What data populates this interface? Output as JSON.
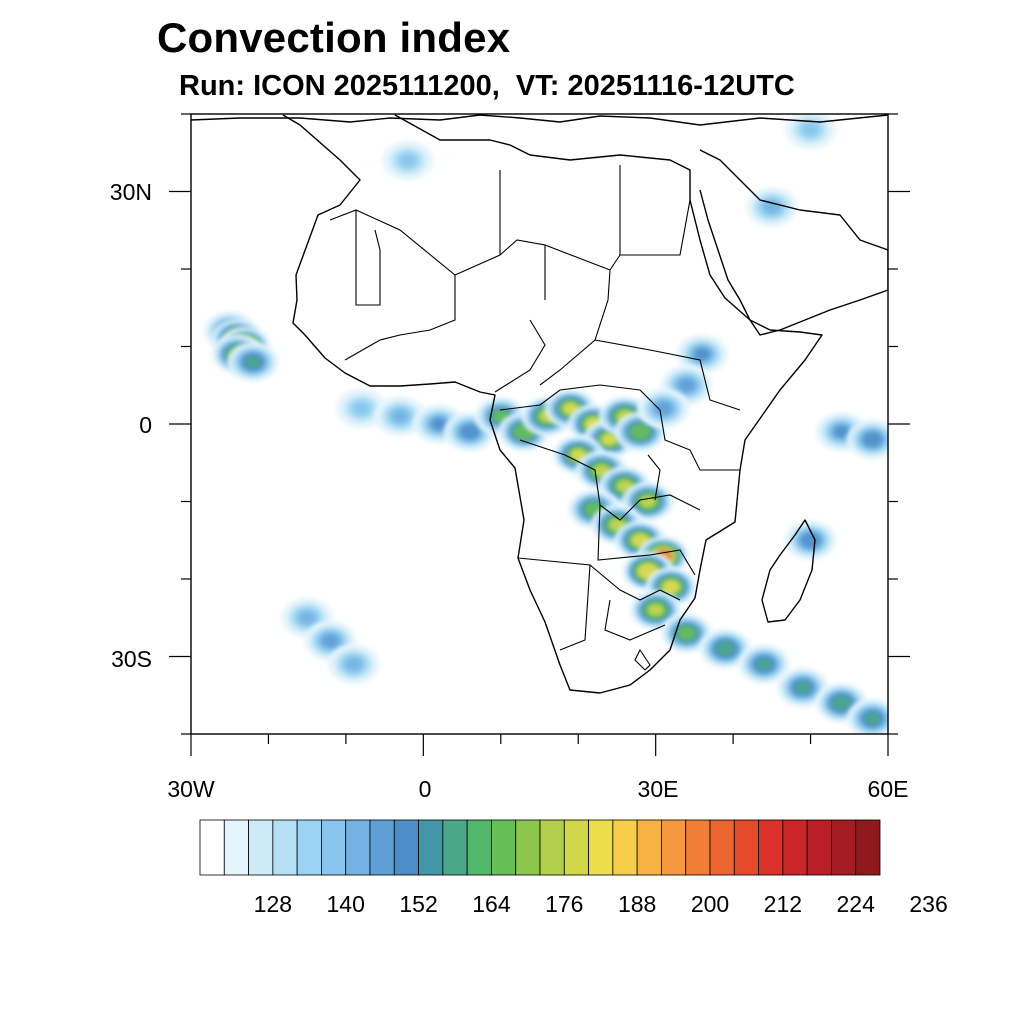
{
  "title": "Convection index",
  "subtitle": "Run: ICON 2025111200,  VT: 20251116-12UTC",
  "axes": {
    "lon_ticks": [
      "30W",
      "0",
      "30E",
      "60E"
    ],
    "lat_ticks": [
      "30N",
      "0",
      "30S"
    ],
    "lon_range": [
      -30,
      60
    ],
    "lat_range": [
      -40,
      40
    ]
  },
  "colorbar": {
    "tick_labels": [
      "128",
      "140",
      "152",
      "164",
      "176",
      "188",
      "200",
      "212",
      "224",
      "236"
    ],
    "colors": [
      "#ffffff",
      "#e6f4fc",
      "#cdeaf8",
      "#b4e0f6",
      "#9ad4f2",
      "#88c4eb",
      "#74b2e2",
      "#5e9fd6",
      "#4b8ec8",
      "#4497a6",
      "#4aa787",
      "#52b76a",
      "#66bf55",
      "#8cc64c",
      "#b0cf4a",
      "#d0d748",
      "#ecde4b",
      "#f7ce4a",
      "#f8b443",
      "#f59a3c",
      "#f07f35",
      "#ea6530",
      "#e34b2b",
      "#dc3128",
      "#cc2528",
      "#b81f26",
      "#a41b22",
      "#8e1a1e"
    ]
  },
  "convection": [
    {
      "lon": -25,
      "lat": 12,
      "level": 10
    },
    {
      "lon": -24,
      "lat": 11,
      "level": 18
    },
    {
      "lon": -23,
      "lat": 10,
      "level": 20
    },
    {
      "lon": -24,
      "lat": 9,
      "level": 14
    },
    {
      "lon": -22,
      "lat": 8,
      "level": 10
    },
    {
      "lon": -8,
      "lat": 2,
      "level": 5
    },
    {
      "lon": -3,
      "lat": 1,
      "level": 6
    },
    {
      "lon": 2,
      "lat": 0,
      "level": 8
    },
    {
      "lon": 6,
      "lat": -1,
      "level": 9
    },
    {
      "lon": 10,
      "lat": 1,
      "level": 12
    },
    {
      "lon": 13,
      "lat": -1,
      "level": 14
    },
    {
      "lon": 16,
      "lat": 1,
      "level": 15
    },
    {
      "lon": 19,
      "lat": 2,
      "level": 16
    },
    {
      "lon": 22,
      "lat": 0,
      "level": 17
    },
    {
      "lon": 24,
      "lat": -2,
      "level": 16
    },
    {
      "lon": 26,
      "lat": 1,
      "level": 15
    },
    {
      "lon": 28,
      "lat": -1,
      "level": 14
    },
    {
      "lon": 20,
      "lat": -4,
      "level": 16
    },
    {
      "lon": 23,
      "lat": -6,
      "level": 15
    },
    {
      "lon": 26,
      "lat": -8,
      "level": 15
    },
    {
      "lon": 29,
      "lat": -10,
      "level": 15
    },
    {
      "lon": 22,
      "lat": -11,
      "level": 13
    },
    {
      "lon": 25,
      "lat": -13,
      "level": 15
    },
    {
      "lon": 28,
      "lat": -15,
      "level": 17
    },
    {
      "lon": 31,
      "lat": -17,
      "level": 21
    },
    {
      "lon": 29,
      "lat": -19,
      "level": 19
    },
    {
      "lon": 32,
      "lat": -21,
      "level": 17
    },
    {
      "lon": 30,
      "lat": -24,
      "level": 15
    },
    {
      "lon": 34,
      "lat": -27,
      "level": 13
    },
    {
      "lon": 39,
      "lat": -29,
      "level": 11
    },
    {
      "lon": 44,
      "lat": -31,
      "level": 10
    },
    {
      "lon": 49,
      "lat": -34,
      "level": 10
    },
    {
      "lon": 54,
      "lat": -36,
      "level": 11
    },
    {
      "lon": 58,
      "lat": -38,
      "level": 10
    },
    {
      "lon": 36,
      "lat": 9,
      "level": 8
    },
    {
      "lon": 34,
      "lat": 5,
      "level": 7
    },
    {
      "lon": 31,
      "lat": 2,
      "level": 7
    },
    {
      "lon": 54,
      "lat": -1,
      "level": 8
    },
    {
      "lon": 58,
      "lat": -2,
      "level": 9
    },
    {
      "lon": 50,
      "lat": -15,
      "level": 9
    },
    {
      "lon": -15,
      "lat": -25,
      "level": 6
    },
    {
      "lon": -12,
      "lat": -28,
      "level": 7
    },
    {
      "lon": -9,
      "lat": -31,
      "level": 6
    },
    {
      "lon": -2,
      "lat": 34,
      "level": 5
    },
    {
      "lon": 45,
      "lat": 28,
      "level": 6
    },
    {
      "lon": 50,
      "lat": 38,
      "level": 5
    }
  ]
}
